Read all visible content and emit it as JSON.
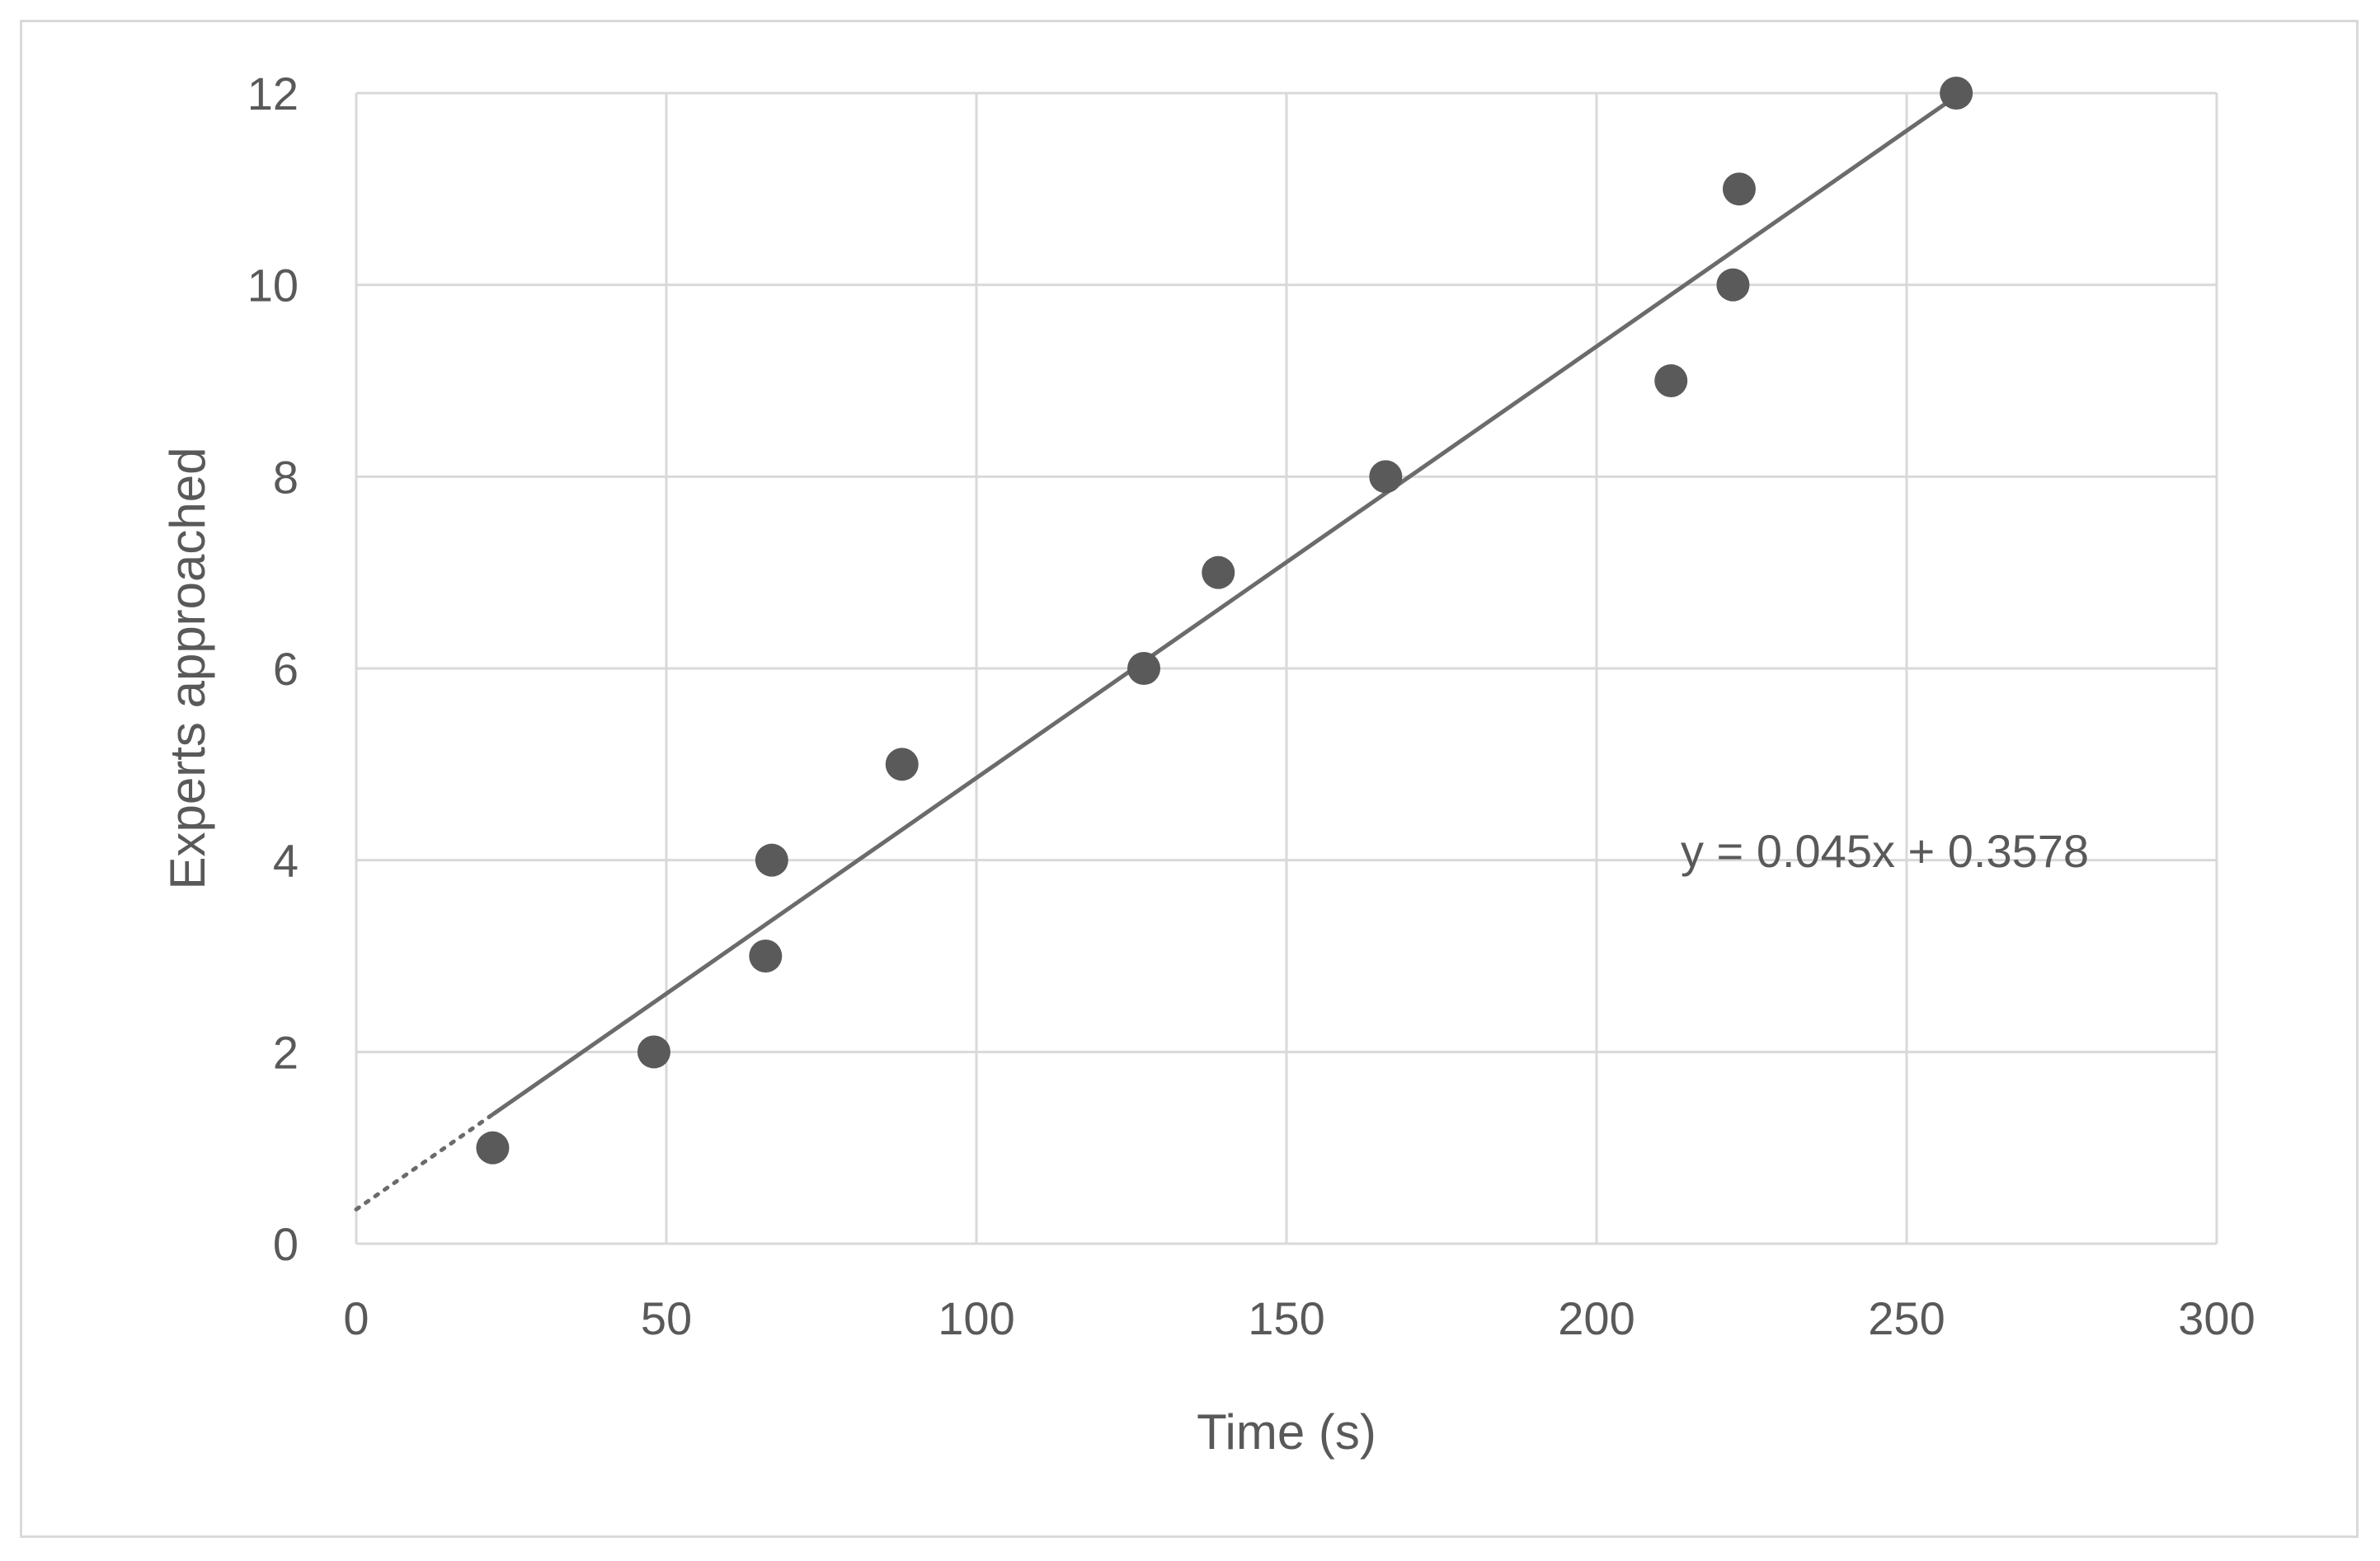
{
  "chart_data": {
    "type": "scatter",
    "title": "",
    "xlabel": "Time (s)",
    "ylabel": "Experts approached",
    "xlim": [
      0,
      300
    ],
    "ylim": [
      0,
      12
    ],
    "x_ticks": [
      0,
      50,
      100,
      150,
      200,
      250,
      300
    ],
    "y_ticks": [
      0,
      2,
      4,
      6,
      8,
      10,
      12
    ],
    "grid": true,
    "legend": "none",
    "series": [
      {
        "points": [
          {
            "x": 22,
            "y": 1
          },
          {
            "x": 48,
            "y": 2
          },
          {
            "x": 66,
            "y": 3
          },
          {
            "x": 67,
            "y": 4
          },
          {
            "x": 88,
            "y": 5
          },
          {
            "x": 127,
            "y": 6
          },
          {
            "x": 139,
            "y": 7
          },
          {
            "x": 166,
            "y": 8
          },
          {
            "x": 212,
            "y": 9
          },
          {
            "x": 222,
            "y": 10
          },
          {
            "x": 223,
            "y": 11
          },
          {
            "x": 258,
            "y": 12
          }
        ],
        "color": "#5a5a5a"
      }
    ],
    "trendline": {
      "type": "linear",
      "slope": 0.045,
      "intercept": 0.3578,
      "equation": "y = 0.045x + 0.3578",
      "color": "#6b6b6b"
    }
  }
}
